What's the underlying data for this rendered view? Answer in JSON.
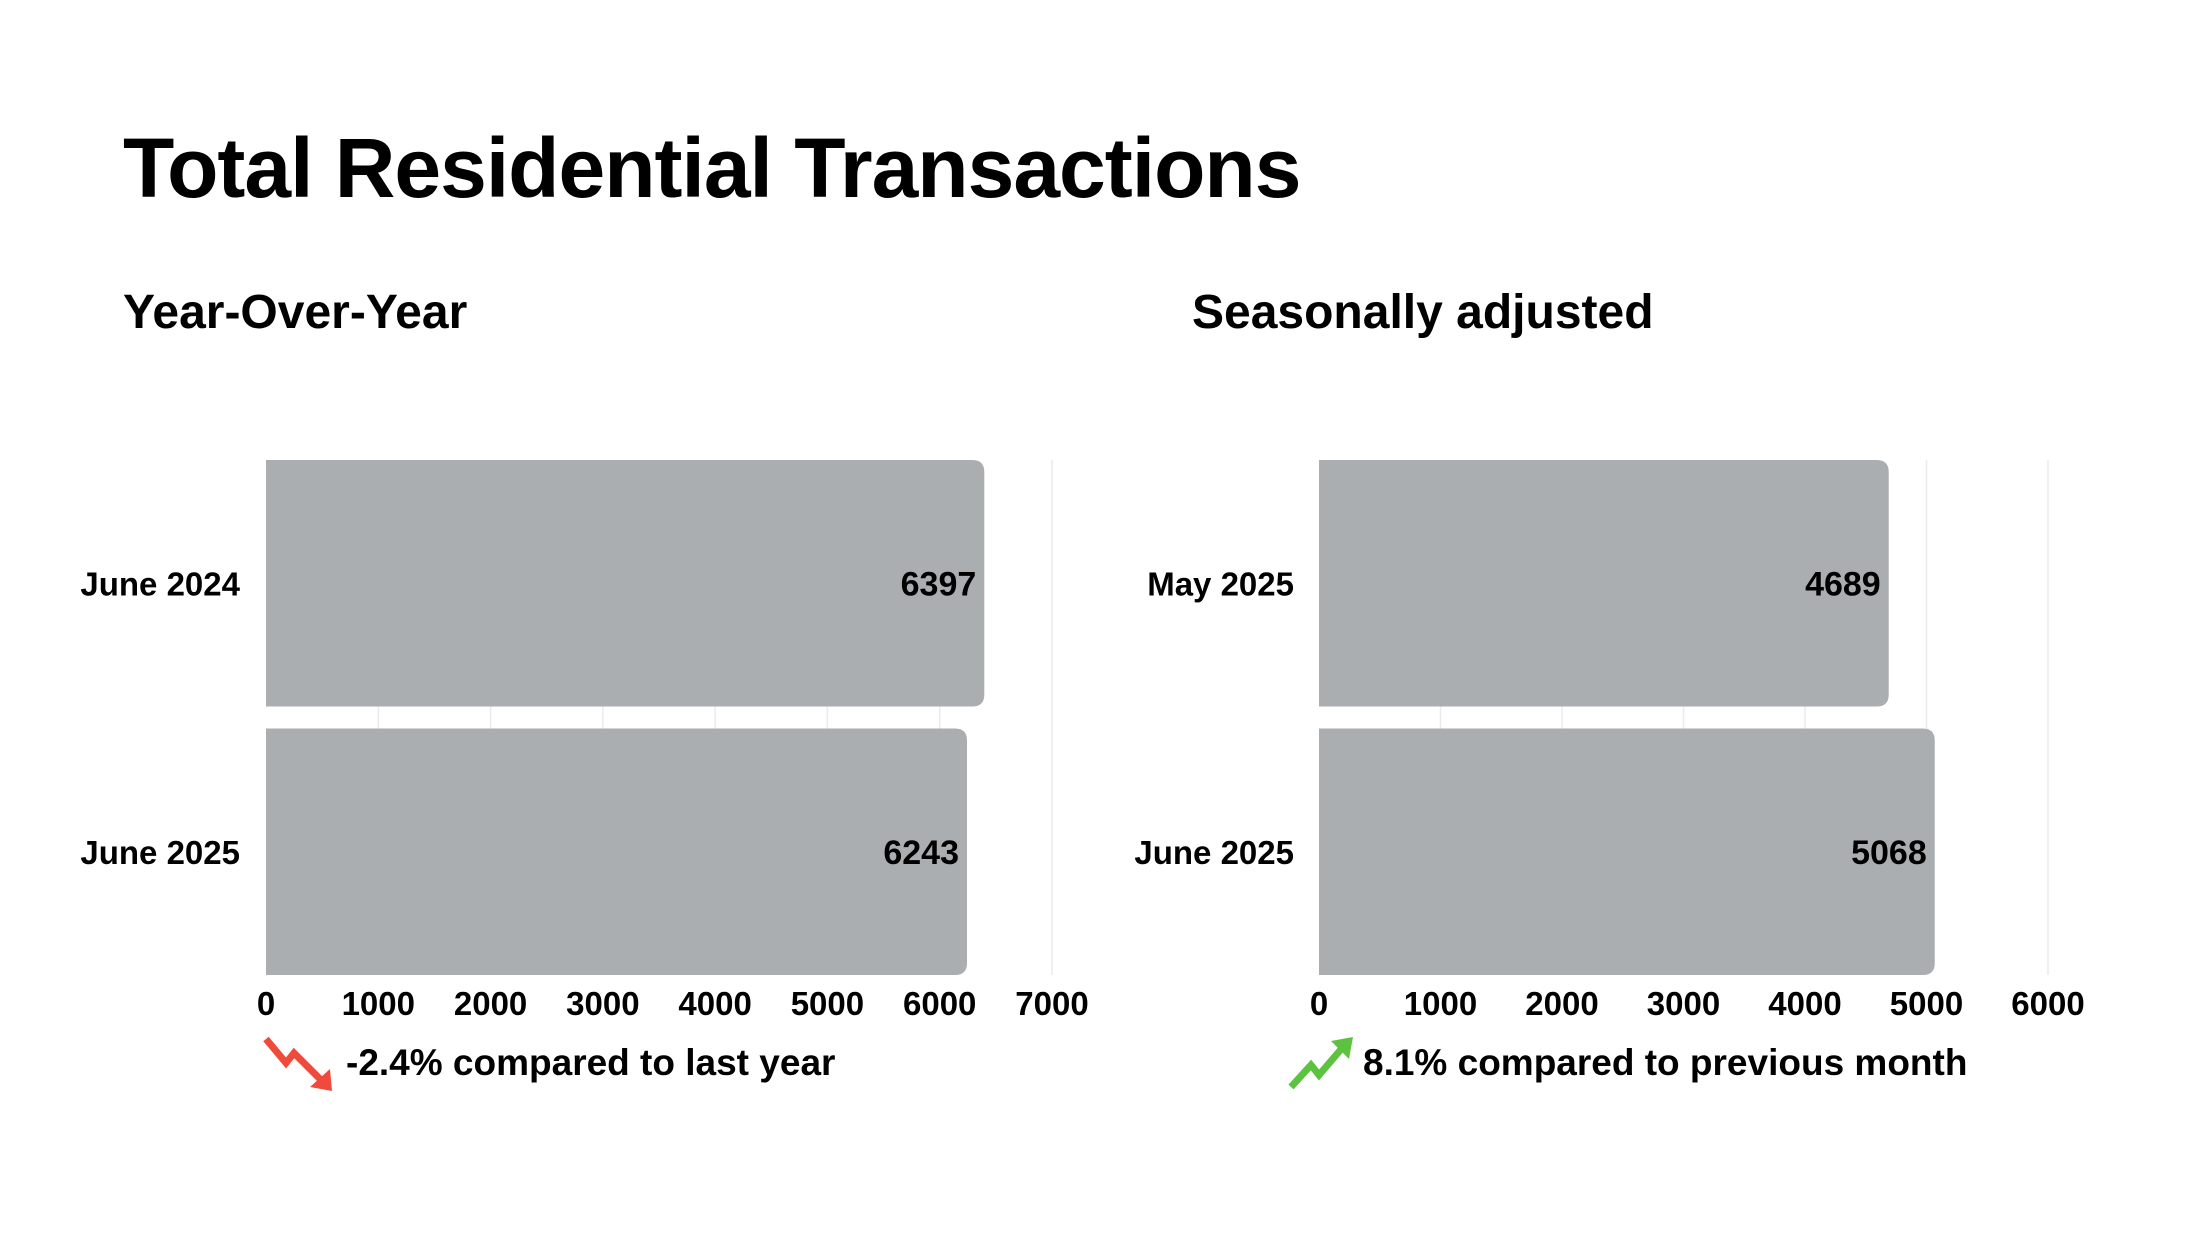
{
  "title": "Total Residential Transactions",
  "chart_data": [
    {
      "type": "bar",
      "orientation": "horizontal",
      "title": "Year-Over-Year",
      "categories": [
        "June 2024",
        "June 2025"
      ],
      "values": [
        6397,
        6243
      ],
      "xlim": [
        0,
        7000
      ],
      "xticks": [
        0,
        1000,
        2000,
        3000,
        4000,
        5000,
        6000,
        7000
      ],
      "grid": true,
      "bar_color": "#aaaeb1",
      "note": "-2.4% compared to last year",
      "note_icon": "trend-down-icon",
      "note_color": "#f04a3c"
    },
    {
      "type": "bar",
      "orientation": "horizontal",
      "title": "Seasonally adjusted",
      "categories": [
        "May 2025",
        "June 2025"
      ],
      "values": [
        4689,
        5068
      ],
      "xlim": [
        0,
        6000
      ],
      "xticks": [
        0,
        1000,
        2000,
        3000,
        4000,
        5000,
        6000
      ],
      "grid": true,
      "bar_color": "#aaaeb1",
      "note": "8.1% compared to previous month",
      "note_icon": "trend-up-icon",
      "note_color": "#5cc23f"
    }
  ]
}
